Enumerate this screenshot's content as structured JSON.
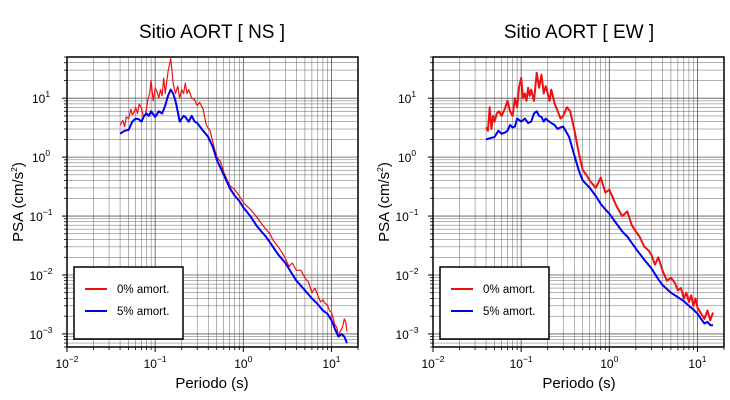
{
  "chart_data": [
    {
      "type": "line",
      "title": "Sitio AORT [ NS ]",
      "xlabel": "Periodo (s)",
      "ylabel_base": "PSA (cm/s",
      "ylabel_sup": "2",
      "ylabel_close": ")",
      "x_scale": "log",
      "y_scale": "log",
      "xlim": [
        0.01,
        20
      ],
      "ylim": [
        0.0006,
        50
      ],
      "grid": true,
      "legend_position": "bottom-left",
      "x_ticks": [
        {
          "base": "10",
          "exp": "−2"
        },
        {
          "base": "10",
          "exp": "−1"
        },
        {
          "base": "10",
          "exp": "0"
        },
        {
          "base": "10",
          "exp": "1"
        }
      ],
      "y_ticks": [
        {
          "base": "10",
          "exp": "−3"
        },
        {
          "base": "10",
          "exp": "−2"
        },
        {
          "base": "10",
          "exp": "−1"
        },
        {
          "base": "10",
          "exp": "0"
        },
        {
          "base": "10",
          "exp": "1"
        }
      ],
      "series": [
        {
          "name": "0% amort.",
          "color": "#ee1111",
          "width": 1.2,
          "x": [
            0.04,
            0.043,
            0.045,
            0.047,
            0.05,
            0.053,
            0.055,
            0.058,
            0.06,
            0.063,
            0.066,
            0.07,
            0.074,
            0.078,
            0.082,
            0.087,
            0.09,
            0.095,
            0.1,
            0.105,
            0.11,
            0.115,
            0.12,
            0.125,
            0.13,
            0.14,
            0.15,
            0.155,
            0.16,
            0.17,
            0.18,
            0.19,
            0.2,
            0.21,
            0.22,
            0.23,
            0.24,
            0.26,
            0.28,
            0.3,
            0.32,
            0.35,
            0.38,
            0.42,
            0.46,
            0.5,
            0.55,
            0.6,
            0.7,
            0.8,
            0.9,
            1.0,
            1.2,
            1.4,
            1.6,
            1.8,
            2.0,
            2.2,
            2.5,
            2.8,
            3.0,
            3.3,
            3.6,
            4.0,
            4.5,
            5.0,
            5.5,
            6.0,
            6.5,
            7.0,
            7.5,
            8.0,
            8.5,
            9.0,
            9.5,
            10.0,
            10.5,
            11.0,
            11.5,
            12.0,
            12.5,
            13.0,
            13.5,
            14.0,
            14.5,
            15.0
          ],
          "y": [
            3.5,
            4.2,
            3.3,
            4.8,
            4.5,
            6.5,
            5.2,
            5.8,
            7.0,
            5.5,
            8.0,
            6.8,
            4.8,
            5.5,
            9.0,
            12.5,
            20.0,
            9.0,
            15.0,
            13.0,
            10.0,
            14.0,
            11.0,
            22.0,
            12.0,
            28.0,
            47.0,
            30.0,
            18.0,
            12.0,
            16.0,
            10.0,
            14.0,
            12.0,
            18.0,
            12.0,
            14.0,
            10.0,
            9.5,
            7.5,
            8.5,
            6.5,
            3.5,
            2.8,
            1.6,
            1.0,
            0.85,
            0.55,
            0.33,
            0.28,
            0.22,
            0.17,
            0.13,
            0.1,
            0.075,
            0.06,
            0.05,
            0.038,
            0.03,
            0.023,
            0.019,
            0.014,
            0.016,
            0.012,
            0.012,
            0.009,
            0.0075,
            0.005,
            0.006,
            0.0045,
            0.0035,
            0.0038,
            0.0033,
            0.0031,
            0.0025,
            0.0023,
            0.0018,
            0.0014,
            0.0013,
            0.0009,
            0.0011,
            0.0012,
            0.0014,
            0.0018,
            0.0016,
            0.0011
          ]
        },
        {
          "name": "5% amort.",
          "color": "#0000ee",
          "width": 2,
          "x": [
            0.04,
            0.045,
            0.05,
            0.055,
            0.06,
            0.065,
            0.07,
            0.075,
            0.08,
            0.085,
            0.09,
            0.1,
            0.11,
            0.12,
            0.13,
            0.14,
            0.15,
            0.16,
            0.17,
            0.18,
            0.19,
            0.2,
            0.21,
            0.22,
            0.24,
            0.26,
            0.28,
            0.3,
            0.35,
            0.4,
            0.45,
            0.5,
            0.6,
            0.7,
            0.8,
            0.9,
            1.0,
            1.2,
            1.4,
            1.6,
            1.8,
            2.0,
            2.5,
            3.0,
            3.5,
            4.0,
            5.0,
            6.0,
            7.0,
            8.0,
            9.0,
            10.0,
            11.0,
            12.0,
            13.0,
            14.0,
            15.0
          ],
          "y": [
            2.5,
            2.8,
            2.9,
            4.0,
            4.5,
            4.4,
            4.0,
            5.0,
            5.5,
            5.0,
            6.0,
            4.8,
            6.0,
            5.5,
            7.5,
            11.0,
            14.0,
            12.0,
            9.0,
            6.0,
            4.0,
            4.5,
            5.0,
            4.8,
            4.0,
            5.0,
            4.0,
            3.8,
            2.8,
            2.2,
            1.5,
            0.9,
            0.5,
            0.3,
            0.22,
            0.18,
            0.14,
            0.1,
            0.07,
            0.055,
            0.045,
            0.036,
            0.022,
            0.016,
            0.011,
            0.008,
            0.0055,
            0.004,
            0.0032,
            0.0025,
            0.0022,
            0.0017,
            0.0012,
            0.0009,
            0.001,
            0.0009,
            0.0007
          ]
        }
      ]
    },
    {
      "type": "line",
      "title": "Sitio AORT [ EW ]",
      "xlabel": "Periodo (s)",
      "ylabel_base": "PSA (cm/s",
      "ylabel_sup": "2",
      "ylabel_close": ")",
      "x_scale": "log",
      "y_scale": "log",
      "xlim": [
        0.01,
        20
      ],
      "ylim": [
        0.0006,
        50
      ],
      "grid": true,
      "legend_position": "bottom-left",
      "x_ticks": [
        {
          "base": "10",
          "exp": "−2"
        },
        {
          "base": "10",
          "exp": "−1"
        },
        {
          "base": "10",
          "exp": "0"
        },
        {
          "base": "10",
          "exp": "1"
        }
      ],
      "y_ticks": [
        {
          "base": "10",
          "exp": "−3"
        },
        {
          "base": "10",
          "exp": "−2"
        },
        {
          "base": "10",
          "exp": "−1"
        },
        {
          "base": "10",
          "exp": "0"
        },
        {
          "base": "10",
          "exp": "1"
        }
      ],
      "series": [
        {
          "name": "0% amort.",
          "color": "#ee1111",
          "width": 2,
          "x": [
            0.04,
            0.042,
            0.044,
            0.046,
            0.048,
            0.05,
            0.053,
            0.056,
            0.06,
            0.065,
            0.07,
            0.075,
            0.08,
            0.085,
            0.09,
            0.095,
            0.1,
            0.105,
            0.11,
            0.115,
            0.12,
            0.125,
            0.13,
            0.14,
            0.15,
            0.16,
            0.17,
            0.18,
            0.19,
            0.2,
            0.21,
            0.22,
            0.24,
            0.26,
            0.28,
            0.3,
            0.33,
            0.36,
            0.4,
            0.45,
            0.5,
            0.55,
            0.6,
            0.7,
            0.8,
            0.9,
            1.0,
            1.2,
            1.4,
            1.6,
            1.8,
            2.0,
            2.2,
            2.5,
            2.8,
            3.0,
            3.3,
            3.6,
            4.0,
            4.5,
            5.0,
            5.5,
            6.0,
            6.5,
            7.0,
            7.5,
            8.0,
            8.5,
            9.0,
            9.5,
            10.0,
            11.0,
            12.0,
            13.0,
            14.0,
            15.0
          ],
          "y": [
            3.2,
            2.8,
            7.0,
            3.0,
            5.0,
            4.0,
            5.5,
            6.0,
            5.0,
            6.5,
            9.0,
            6.0,
            5.0,
            10.0,
            7.0,
            16.0,
            22.0,
            10.0,
            12.0,
            9.0,
            15.0,
            11.0,
            14.0,
            9.0,
            27.0,
            15.0,
            25.0,
            12.0,
            16.0,
            12.0,
            9.0,
            14.0,
            8.0,
            6.0,
            4.5,
            5.0,
            7.0,
            6.0,
            3.0,
            1.2,
            0.6,
            0.5,
            0.4,
            0.3,
            0.45,
            0.25,
            0.28,
            0.15,
            0.1,
            0.12,
            0.07,
            0.055,
            0.045,
            0.03,
            0.026,
            0.022,
            0.015,
            0.02,
            0.012,
            0.008,
            0.009,
            0.0075,
            0.0055,
            0.006,
            0.004,
            0.005,
            0.0035,
            0.0045,
            0.003,
            0.004,
            0.0028,
            0.0022,
            0.0018,
            0.0025,
            0.0017,
            0.0023
          ]
        },
        {
          "name": "5% amort.",
          "color": "#0000ee",
          "width": 2,
          "x": [
            0.04,
            0.045,
            0.05,
            0.055,
            0.06,
            0.065,
            0.07,
            0.075,
            0.08,
            0.085,
            0.09,
            0.1,
            0.11,
            0.12,
            0.13,
            0.14,
            0.15,
            0.16,
            0.17,
            0.18,
            0.19,
            0.2,
            0.22,
            0.24,
            0.26,
            0.28,
            0.3,
            0.35,
            0.4,
            0.45,
            0.5,
            0.6,
            0.7,
            0.8,
            0.9,
            1.0,
            1.2,
            1.4,
            1.6,
            1.8,
            2.0,
            2.5,
            3.0,
            3.5,
            4.0,
            5.0,
            6.0,
            7.0,
            8.0,
            9.0,
            10.0,
            11.0,
            12.0,
            13.0,
            14.0,
            15.0
          ],
          "y": [
            2.0,
            2.1,
            2.2,
            2.8,
            2.5,
            2.6,
            2.8,
            3.5,
            3.2,
            3.3,
            4.5,
            4.0,
            4.5,
            3.8,
            4.0,
            5.5,
            6.0,
            5.0,
            4.8,
            4.0,
            4.5,
            4.2,
            3.8,
            3.5,
            3.0,
            3.2,
            3.3,
            2.2,
            1.1,
            0.6,
            0.4,
            0.3,
            0.22,
            0.16,
            0.13,
            0.11,
            0.075,
            0.055,
            0.045,
            0.035,
            0.028,
            0.018,
            0.013,
            0.009,
            0.0068,
            0.005,
            0.0042,
            0.0036,
            0.003,
            0.0026,
            0.0022,
            0.0018,
            0.0015,
            0.0016,
            0.0014,
            0.0014
          ]
        }
      ]
    }
  ]
}
